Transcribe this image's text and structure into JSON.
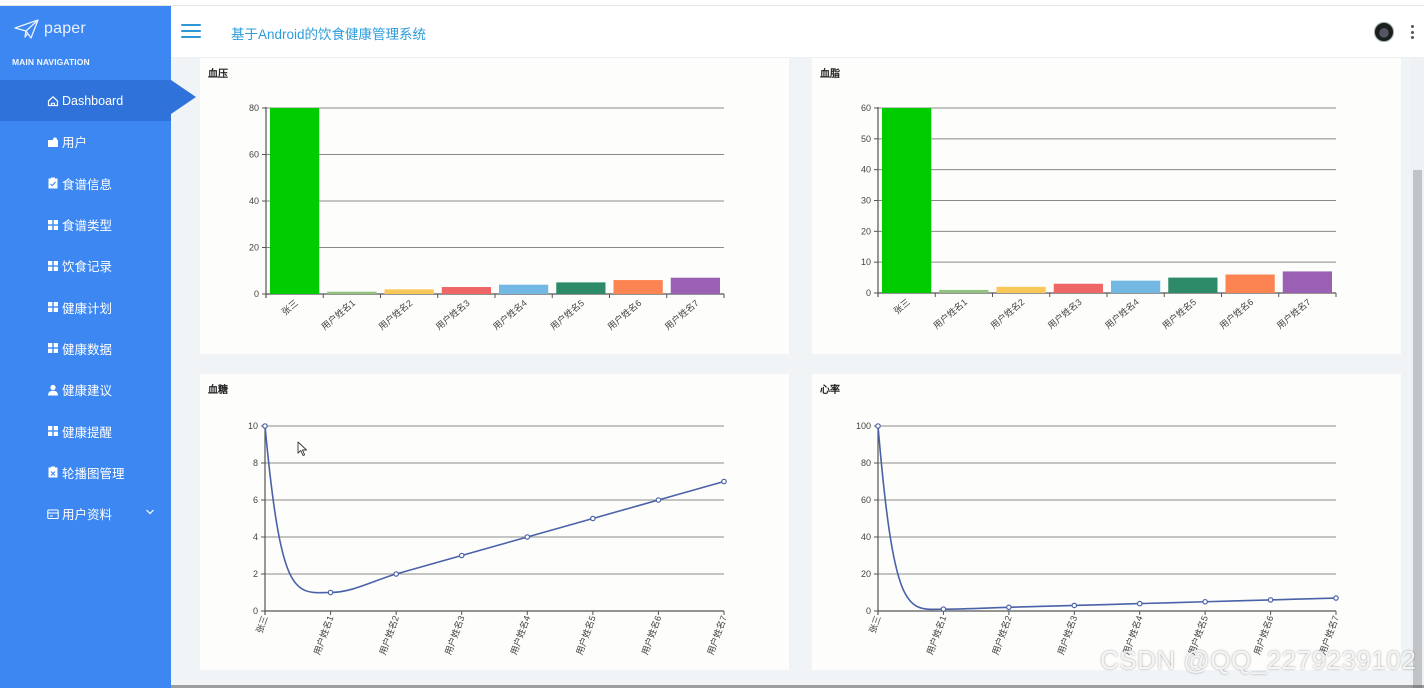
{
  "sidebar": {
    "logo_text": "paper",
    "nav_header": "MAIN NAVIGATION",
    "items": [
      {
        "label": "Dashboard",
        "icon": "home-icon",
        "active": true
      },
      {
        "label": "用户",
        "icon": "user-card-icon"
      },
      {
        "label": "食谱信息",
        "icon": "clipboard-check-icon"
      },
      {
        "label": "食谱类型",
        "icon": "grid-icon"
      },
      {
        "label": "饮食记录",
        "icon": "grid-icon"
      },
      {
        "label": "健康计划",
        "icon": "grid-icon"
      },
      {
        "label": "健康数据",
        "icon": "grid-icon"
      },
      {
        "label": "健康建议",
        "icon": "person-icon"
      },
      {
        "label": "健康提醒",
        "icon": "grid-icon"
      },
      {
        "label": "轮播图管理",
        "icon": "clipboard-x-icon"
      },
      {
        "label": "用户资料",
        "icon": "id-card-icon",
        "expandable": true
      }
    ]
  },
  "header": {
    "title": "基于Android的饮食健康管理系统"
  },
  "colors": {
    "sidebar_bg": "#3c87f2",
    "sidebar_active": "#2f73da",
    "title_color": "#2d9cdb",
    "line_color": "#4a62a8"
  },
  "watermark": "CSDN @QQ_2279239102",
  "chart_data": [
    {
      "type": "bar",
      "title": "血压",
      "categories": [
        "张三",
        "用户姓名1",
        "用户姓名2",
        "用户姓名3",
        "用户姓名4",
        "用户姓名5",
        "用户姓名6",
        "用户姓名7"
      ],
      "values": [
        80,
        1,
        2,
        3,
        4,
        5,
        6,
        7
      ],
      "colors": [
        "#00cc00",
        "#91c27f",
        "#fac858",
        "#ee6666",
        "#73b8e2",
        "#2e8b69",
        "#fc8452",
        "#9a60b4"
      ],
      "yticks": [
        0,
        20,
        40,
        60,
        80
      ],
      "ylim": [
        0,
        80
      ],
      "grid": true
    },
    {
      "type": "bar",
      "title": "血脂",
      "categories": [
        "张三",
        "用户姓名1",
        "用户姓名2",
        "用户姓名3",
        "用户姓名4",
        "用户姓名5",
        "用户姓名6",
        "用户姓名7"
      ],
      "values": [
        60,
        1,
        2,
        3,
        4,
        5,
        6,
        7
      ],
      "colors": [
        "#00cc00",
        "#91c27f",
        "#fac858",
        "#ee6666",
        "#73b8e2",
        "#2e8b69",
        "#fc8452",
        "#9a60b4"
      ],
      "yticks": [
        0,
        10,
        20,
        30,
        40,
        50,
        60
      ],
      "ylim": [
        0,
        60
      ],
      "grid": true
    },
    {
      "type": "line",
      "title": "血糖",
      "categories": [
        "张三",
        "用户姓名1",
        "用户姓名2",
        "用户姓名3",
        "用户姓名4",
        "用户姓名5",
        "用户姓名6",
        "用户姓名7"
      ],
      "values": [
        10,
        1,
        2,
        3,
        4,
        5,
        6,
        7
      ],
      "yticks": [
        0,
        2,
        4,
        6,
        8,
        10
      ],
      "ylim": [
        0,
        10
      ],
      "smooth": true,
      "grid": true
    },
    {
      "type": "line",
      "title": "心率",
      "categories": [
        "张三",
        "用户姓名1",
        "用户姓名2",
        "用户姓名3",
        "用户姓名4",
        "用户姓名5",
        "用户姓名6",
        "用户姓名7"
      ],
      "values": [
        100,
        1,
        2,
        3,
        4,
        5,
        6,
        7
      ],
      "yticks": [
        0,
        20,
        40,
        60,
        80,
        100
      ],
      "ylim": [
        0,
        100
      ],
      "smooth": true,
      "grid": true
    }
  ]
}
